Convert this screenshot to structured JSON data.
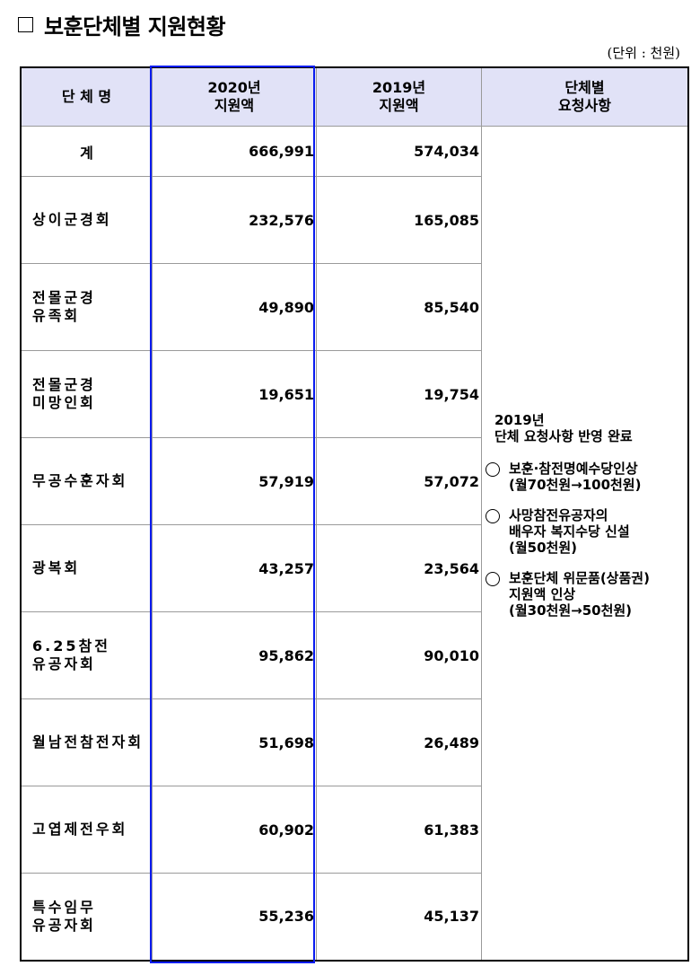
{
  "title": "보훈단체별 지원현황",
  "unit": "(단위 : 천원)",
  "headers": {
    "name": "단 체 명",
    "y2020": [
      "2020년",
      "지원액"
    ],
    "y2019": [
      "2019년",
      "지원액"
    ],
    "request": [
      "단체별",
      "요청사항"
    ]
  },
  "rows": [
    {
      "name": [
        "계"
      ],
      "y2020": "666,991",
      "y2019": "574,034"
    },
    {
      "name": [
        "상이군경회"
      ],
      "y2020": "232,576",
      "y2019": "165,085"
    },
    {
      "name": [
        "전몰군경",
        "유족회"
      ],
      "y2020": "49,890",
      "y2019": "85,540"
    },
    {
      "name": [
        "전몰군경",
        "미망인회"
      ],
      "y2020": "19,651",
      "y2019": "19,754"
    },
    {
      "name": [
        "무공수훈자회"
      ],
      "y2020": "57,919",
      "y2019": "57,072"
    },
    {
      "name": [
        "광복회"
      ],
      "y2020": "43,257",
      "y2019": "23,564"
    },
    {
      "name": [
        "6.25참전",
        "유공자회"
      ],
      "y2020": "95,862",
      "y2019": "90,010"
    },
    {
      "name": [
        "월남전참전자회"
      ],
      "y2020": "51,698",
      "y2019": "26,489"
    },
    {
      "name": [
        "고엽제전우회"
      ],
      "y2020": "60,902",
      "y2019": "61,383"
    },
    {
      "name": [
        "특수임무",
        "유공자회"
      ],
      "y2020": "55,236",
      "y2019": "45,137"
    }
  ],
  "notes": {
    "head": [
      "2019년",
      "단체 요청사항 반영 완료"
    ],
    "items": [
      [
        "보훈·참전명예수당인상",
        "(월70천원→100천원)"
      ],
      [
        "사망참전유공자의",
        "배우자 복지수당 신설",
        "(월50천원)"
      ],
      [
        "보훈단체 위문품(상품권)",
        "지원액 인상",
        "(월30천원→50천원)"
      ]
    ]
  }
}
